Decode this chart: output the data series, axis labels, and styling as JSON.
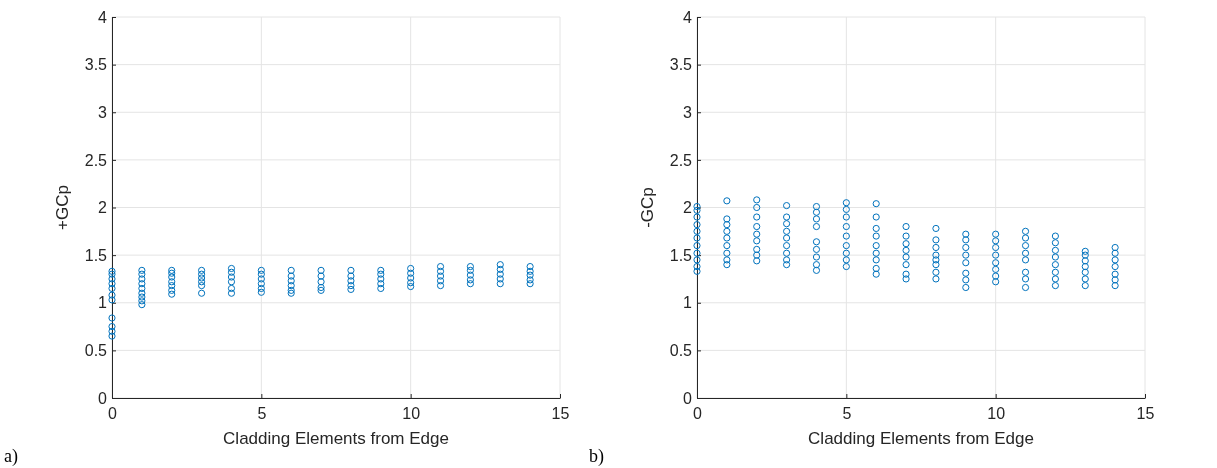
{
  "chart_data": [
    {
      "type": "scatter",
      "xlabel": "Cladding Elements from Edge",
      "ylabel": "+GCp",
      "annotations": [
        "a)"
      ],
      "xlim": [
        0,
        15
      ],
      "xticks": [
        0,
        5,
        10,
        15
      ],
      "ylim": [
        0,
        4
      ],
      "yticks": [
        0,
        0.5,
        1,
        1.5,
        2,
        2.5,
        3,
        3.5,
        4
      ],
      "grid": true,
      "marker": "circle",
      "series": [
        {
          "color": "#0072bd",
          "x": [
            0,
            0,
            0,
            0,
            0,
            0,
            0,
            0,
            0,
            0,
            0,
            1,
            1,
            1,
            1,
            1,
            1,
            1,
            1,
            1,
            2,
            2,
            2,
            2,
            2,
            2,
            2,
            3,
            3,
            3,
            3,
            3,
            3,
            4,
            4,
            4,
            4,
            4,
            4,
            5,
            5,
            5,
            5,
            5,
            5,
            6,
            6,
            6,
            6,
            6,
            6,
            7,
            7,
            7,
            7,
            7,
            8,
            8,
            8,
            8,
            8,
            9,
            9,
            9,
            9,
            9,
            10,
            10,
            10,
            10,
            10,
            11,
            11,
            11,
            11,
            11,
            12,
            12,
            12,
            12,
            12,
            13,
            13,
            13,
            13,
            13,
            14,
            14,
            14,
            14,
            14
          ],
          "values": [
            0.65,
            0.7,
            0.75,
            0.84,
            1.03,
            1.08,
            1.15,
            1.2,
            1.25,
            1.3,
            1.33,
            0.98,
            1.02,
            1.06,
            1.1,
            1.15,
            1.2,
            1.25,
            1.3,
            1.34,
            1.09,
            1.13,
            1.18,
            1.22,
            1.27,
            1.31,
            1.34,
            1.1,
            1.18,
            1.22,
            1.26,
            1.3,
            1.34,
            1.1,
            1.15,
            1.22,
            1.27,
            1.32,
            1.36,
            1.11,
            1.15,
            1.2,
            1.25,
            1.3,
            1.34,
            1.1,
            1.13,
            1.18,
            1.23,
            1.28,
            1.34,
            1.13,
            1.16,
            1.22,
            1.28,
            1.34,
            1.14,
            1.18,
            1.23,
            1.28,
            1.34,
            1.15,
            1.2,
            1.25,
            1.3,
            1.34,
            1.17,
            1.21,
            1.26,
            1.31,
            1.36,
            1.18,
            1.23,
            1.28,
            1.33,
            1.38,
            1.2,
            1.24,
            1.29,
            1.34,
            1.38,
            1.2,
            1.25,
            1.3,
            1.35,
            1.4,
            1.2,
            1.24,
            1.29,
            1.33,
            1.38
          ]
        }
      ]
    },
    {
      "type": "scatter",
      "xlabel": "Cladding Elements from Edge",
      "ylabel": "-GCp",
      "annotations": [
        "b)"
      ],
      "xlim": [
        0,
        15
      ],
      "xticks": [
        0,
        5,
        10,
        15
      ],
      "ylim": [
        0,
        4
      ],
      "yticks": [
        0,
        0.5,
        1,
        1.5,
        2,
        2.5,
        3,
        3.5,
        4
      ],
      "grid": true,
      "marker": "circle",
      "series": [
        {
          "color": "#0072bd",
          "x": [
            0,
            0,
            0,
            0,
            0,
            0,
            0,
            0,
            0,
            0,
            0,
            1,
            1,
            1,
            1,
            1,
            1,
            1,
            1,
            1,
            2,
            2,
            2,
            2,
            2,
            2,
            2,
            2,
            2,
            3,
            3,
            3,
            3,
            3,
            3,
            3,
            3,
            3,
            4,
            4,
            4,
            4,
            4,
            4,
            4,
            4,
            4,
            5,
            5,
            5,
            5,
            5,
            5,
            5,
            5,
            5,
            6,
            6,
            6,
            6,
            6,
            6,
            6,
            6,
            6,
            7,
            7,
            7,
            7,
            7,
            7,
            7,
            7,
            8,
            8,
            8,
            8,
            8,
            8,
            8,
            8,
            9,
            9,
            9,
            9,
            9,
            9,
            9,
            9,
            10,
            10,
            10,
            10,
            10,
            10,
            10,
            10,
            11,
            11,
            11,
            11,
            11,
            11,
            11,
            11,
            12,
            12,
            12,
            12,
            12,
            12,
            12,
            12,
            13,
            13,
            13,
            13,
            13,
            13,
            13,
            14,
            14,
            14,
            14,
            14,
            14,
            14
          ],
          "values": [
            1.33,
            1.38,
            1.45,
            1.52,
            1.6,
            1.68,
            1.75,
            1.82,
            1.9,
            1.97,
            2.01,
            1.4,
            1.45,
            1.52,
            1.6,
            1.68,
            1.75,
            1.82,
            1.88,
            2.07,
            1.44,
            1.5,
            1.56,
            1.65,
            1.72,
            1.8,
            1.9,
            2.0,
            2.08,
            1.4,
            1.45,
            1.52,
            1.6,
            1.68,
            1.75,
            1.83,
            1.9,
            2.02,
            1.34,
            1.4,
            1.48,
            1.56,
            1.64,
            1.8,
            1.88,
            1.95,
            2.01,
            1.38,
            1.45,
            1.52,
            1.6,
            1.7,
            1.8,
            1.9,
            1.98,
            2.05,
            1.3,
            1.36,
            1.45,
            1.52,
            1.6,
            1.7,
            1.78,
            1.9,
            2.04,
            1.25,
            1.3,
            1.4,
            1.48,
            1.55,
            1.62,
            1.7,
            1.8,
            1.25,
            1.32,
            1.4,
            1.45,
            1.5,
            1.58,
            1.66,
            1.78,
            1.16,
            1.24,
            1.31,
            1.42,
            1.5,
            1.58,
            1.66,
            1.72,
            1.22,
            1.28,
            1.35,
            1.42,
            1.5,
            1.58,
            1.65,
            1.72,
            1.16,
            1.25,
            1.32,
            1.45,
            1.52,
            1.6,
            1.68,
            1.75,
            1.18,
            1.25,
            1.32,
            1.4,
            1.48,
            1.55,
            1.63,
            1.7,
            1.18,
            1.25,
            1.32,
            1.38,
            1.44,
            1.5,
            1.54,
            1.18,
            1.24,
            1.3,
            1.38,
            1.45,
            1.52,
            1.58
          ]
        }
      ]
    }
  ]
}
